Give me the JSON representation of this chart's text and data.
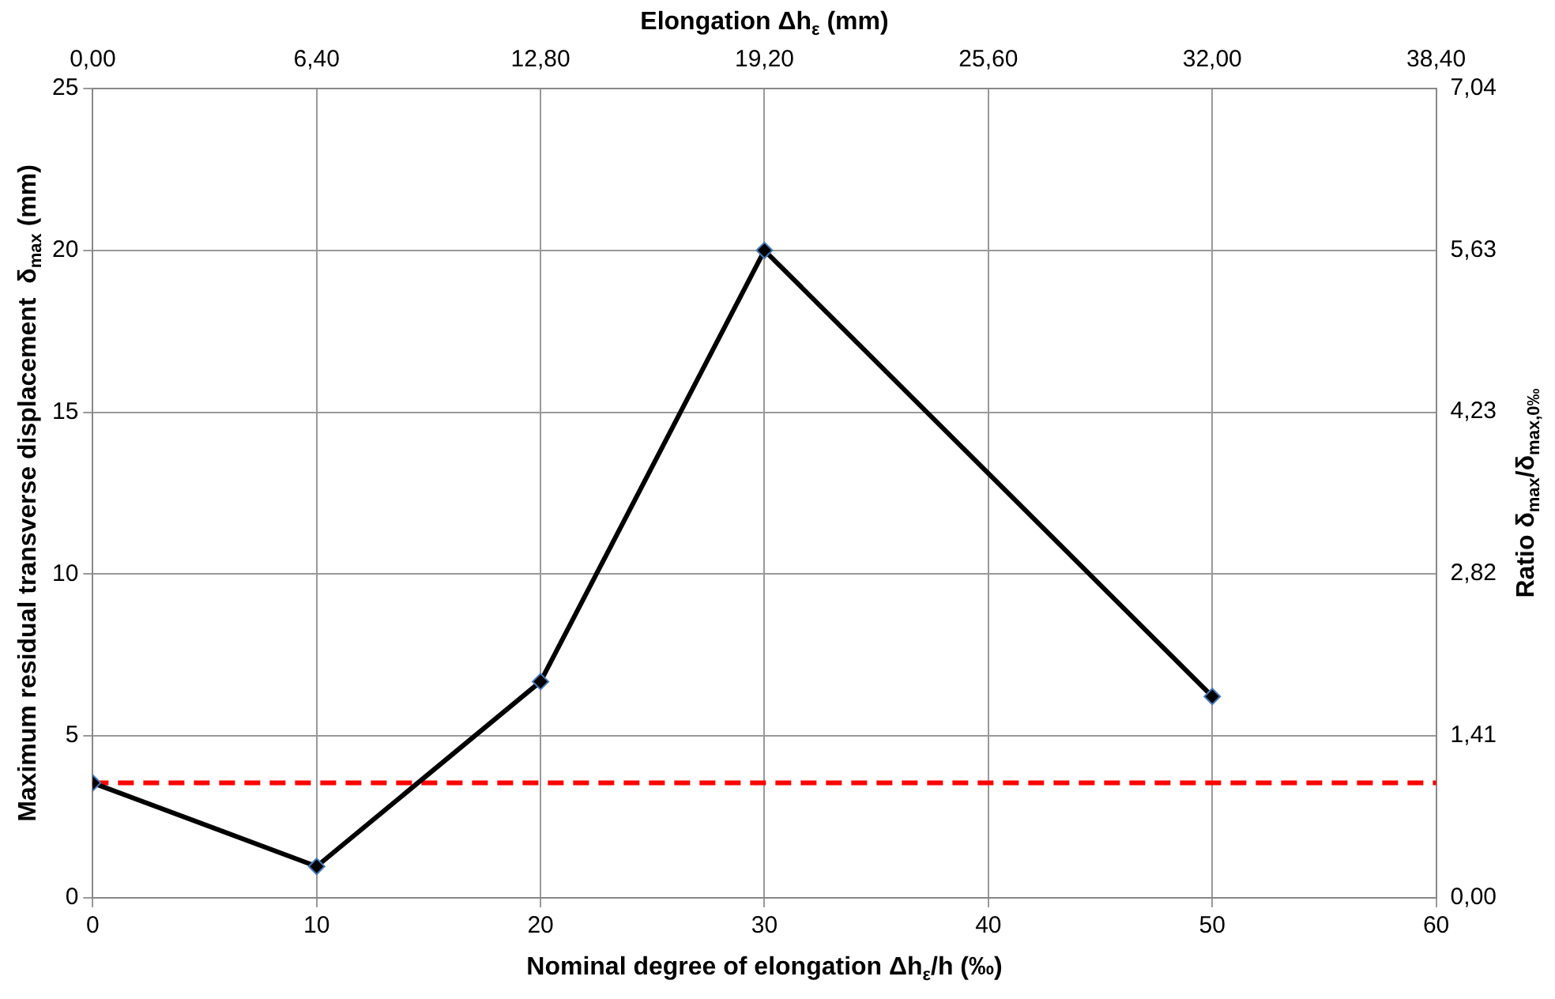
{
  "chart_data": {
    "type": "line",
    "xlabel": "Nominal degree of elongation Δh$_{ε}$/h (‰)",
    "ylabel": "Maximum residual transverse displacement  δ$_{max}$ (mm)",
    "x2label": "Elongation Δh$_{ε}$ (mm)",
    "y2label": "Ratio δ$_{max}$/δ$_{max,0‰}$",
    "series": [
      {
        "color": "#000000",
        "x": [
          0,
          10,
          20,
          30,
          50
        ],
        "values": [
          3.55,
          0.97,
          6.68,
          20,
          6.22
        ]
      }
    ],
    "xlim": [
      0,
      60
    ],
    "xticks": [
      0,
      10,
      20,
      30,
      40,
      50,
      60
    ],
    "ylim": [
      0,
      25
    ],
    "yticks": [
      0,
      5,
      10,
      15,
      20,
      25
    ],
    "x2lim": [
      0,
      38.4
    ],
    "x2ticks": [
      {
        "value": 0,
        "label": "0,00"
      },
      {
        "value": 6.4,
        "label": "6,40"
      },
      {
        "value": 12.8,
        "label": "12,80"
      },
      {
        "value": 19.2,
        "label": "19,20"
      },
      {
        "value": 25.6,
        "label": "25,60"
      },
      {
        "value": 32,
        "label": "32,00"
      },
      {
        "value": 38.4,
        "label": "38,40"
      }
    ],
    "y2lim": [
      0,
      7.04
    ],
    "y2ticks": [
      {
        "value": 0,
        "label": "0,00"
      },
      {
        "value": 1.41,
        "label": "1,41"
      },
      {
        "value": 2.82,
        "label": "2,82"
      },
      {
        "value": 4.23,
        "label": "4,23"
      },
      {
        "value": 5.63,
        "label": "5,63"
      },
      {
        "value": 7.04,
        "label": "7,04"
      }
    ],
    "ref_lines": [
      {
        "axis": "y",
        "value": 3.55,
        "color": "#ff0000",
        "line_style": "dashed"
      }
    ],
    "grid": true,
    "legend": false,
    "marker": "diamond",
    "line_style": "solid"
  }
}
